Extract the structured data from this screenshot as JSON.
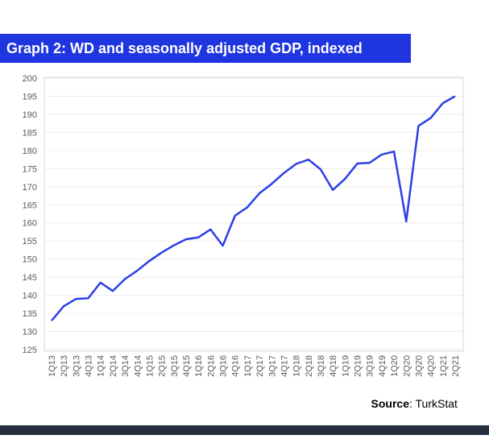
{
  "chart_data": {
    "type": "line",
    "title": "Graph 2: WD and seasonally adjusted GDP, indexed",
    "categories": [
      "1Q13",
      "2Q13",
      "3Q13",
      "4Q13",
      "1Q14",
      "2Q14",
      "3Q14",
      "4Q14",
      "1Q15",
      "2Q15",
      "3Q15",
      "4Q15",
      "1Q16",
      "2Q16",
      "3Q16",
      "4Q16",
      "1Q17",
      "2Q17",
      "3Q17",
      "4Q17",
      "1Q18",
      "2Q18",
      "3Q18",
      "4Q18",
      "1Q19",
      "2Q19",
      "3Q19",
      "4Q19",
      "1Q20",
      "2Q20",
      "3Q20",
      "4Q20",
      "1Q21",
      "2Q21"
    ],
    "values": [
      133,
      137,
      139,
      139.2,
      143.5,
      141.2,
      144.5,
      146.8,
      149.5,
      151.8,
      153.8,
      155.5,
      156,
      158.2,
      153.7,
      162,
      164.3,
      168.2,
      170.8,
      173.8,
      176.3,
      177.5,
      174.8,
      169.1,
      172.2,
      176.4,
      176.6,
      178.9,
      179.7,
      160.4,
      186.8,
      189,
      193.1,
      195
    ],
    "color": "#2b3fe8",
    "ylim": [
      125,
      200
    ],
    "yticks": [
      125,
      130,
      135,
      140,
      145,
      150,
      155,
      160,
      165,
      170,
      175,
      180,
      185,
      190,
      195,
      200
    ],
    "grid": true,
    "source": {
      "label": "Source",
      "text": ": TurkStat"
    }
  }
}
